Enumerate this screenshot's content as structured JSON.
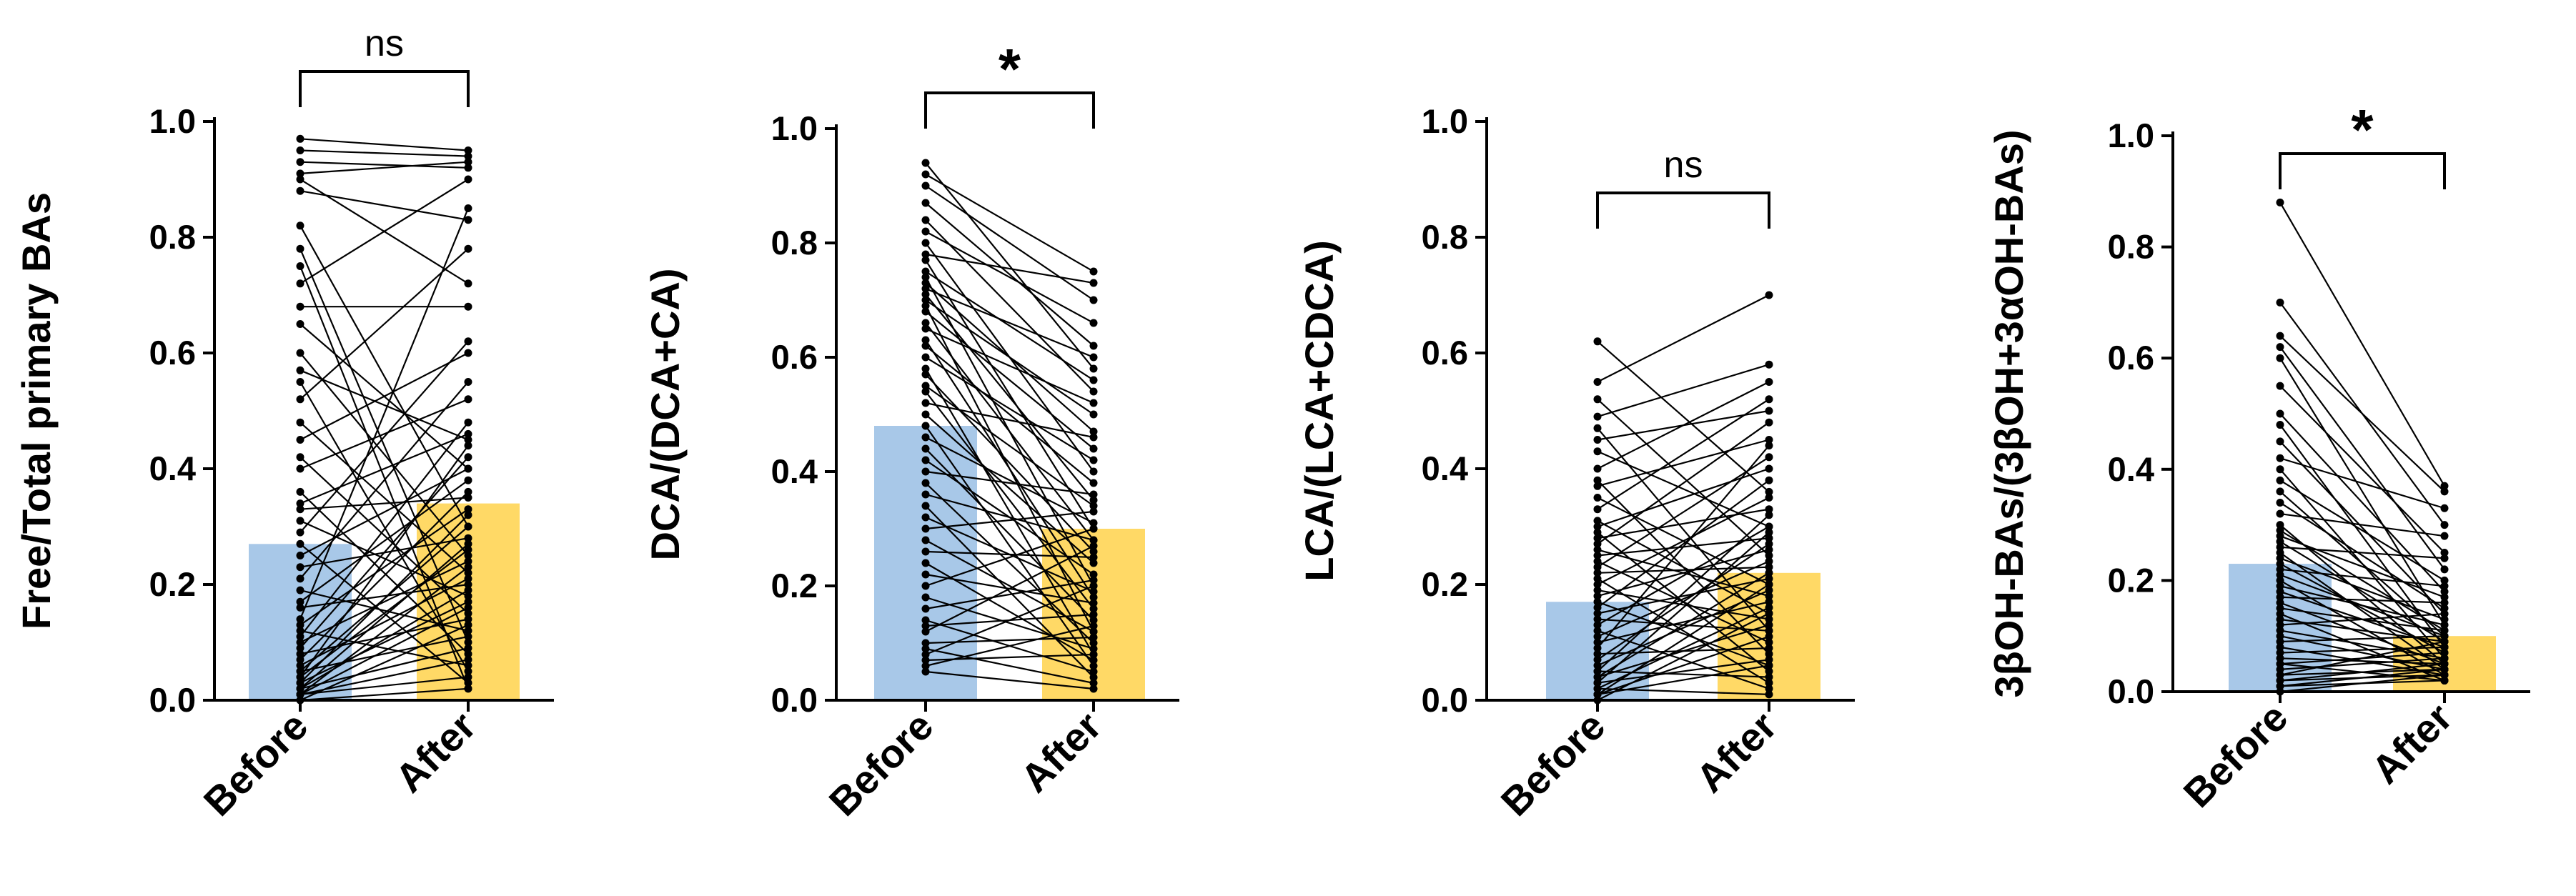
{
  "chart_data": [
    {
      "type": "bar",
      "subtype": "before-after paired dot plot",
      "ylabel": "Free/Total primary BAs",
      "categories": [
        "Before",
        "After"
      ],
      "bar_values": [
        0.27,
        0.34
      ],
      "bar_colors": [
        "#a8c8e8",
        "#ffd966"
      ],
      "ylim": [
        0,
        1.0
      ],
      "yticks": [
        "0.0",
        "0.2",
        "0.4",
        "0.6",
        "0.8",
        "1.0"
      ],
      "significance": "ns",
      "pairs": [
        [
          0.97,
          0.95
        ],
        [
          0.95,
          0.94
        ],
        [
          0.93,
          0.92
        ],
        [
          0.91,
          0.93
        ],
        [
          0.9,
          0.72
        ],
        [
          0.88,
          0.83
        ],
        [
          0.82,
          0.3
        ],
        [
          0.78,
          0.1
        ],
        [
          0.75,
          0.02
        ],
        [
          0.72,
          0.9
        ],
        [
          0.68,
          0.68
        ],
        [
          0.65,
          0.4
        ],
        [
          0.6,
          0.25
        ],
        [
          0.57,
          0.45
        ],
        [
          0.55,
          0.05
        ],
        [
          0.52,
          0.78
        ],
        [
          0.48,
          0.22
        ],
        [
          0.45,
          0.6
        ],
        [
          0.42,
          0.15
        ],
        [
          0.4,
          0.52
        ],
        [
          0.36,
          0.08
        ],
        [
          0.34,
          0.46
        ],
        [
          0.33,
          0.35
        ],
        [
          0.31,
          0.18
        ],
        [
          0.29,
          0.62
        ],
        [
          0.27,
          0.03
        ],
        [
          0.25,
          0.4
        ],
        [
          0.23,
          0.28
        ],
        [
          0.21,
          0.55
        ],
        [
          0.19,
          0.12
        ],
        [
          0.17,
          0.38
        ],
        [
          0.16,
          0.2
        ],
        [
          0.14,
          0.85
        ],
        [
          0.13,
          0.33
        ],
        [
          0.12,
          0.06
        ],
        [
          0.11,
          0.48
        ],
        [
          0.1,
          0.24
        ],
        [
          0.09,
          0.42
        ],
        [
          0.08,
          0.14
        ],
        [
          0.07,
          0.36
        ],
        [
          0.06,
          0.21
        ],
        [
          0.05,
          0.3
        ],
        [
          0.05,
          0.11
        ],
        [
          0.04,
          0.26
        ],
        [
          0.04,
          0.44
        ],
        [
          0.03,
          0.17
        ],
        [
          0.03,
          0.32
        ],
        [
          0.02,
          0.09
        ],
        [
          0.02,
          0.27
        ],
        [
          0.02,
          0.19
        ],
        [
          0.01,
          0.07
        ],
        [
          0.01,
          0.16
        ],
        [
          0.01,
          0.04
        ],
        [
          0.01,
          0.23
        ],
        [
          0.0,
          0.13
        ],
        [
          0.0,
          0.02
        ]
      ]
    },
    {
      "type": "bar",
      "subtype": "before-after paired dot plot",
      "ylabel": "DCA/(DCA+CA)",
      "categories": [
        "Before",
        "After"
      ],
      "bar_values": [
        0.48,
        0.3
      ],
      "bar_colors": [
        "#a8c8e8",
        "#ffd966"
      ],
      "ylim": [
        0,
        1.0
      ],
      "yticks": [
        "0.0",
        "0.2",
        "0.4",
        "0.6",
        "0.8",
        "1.0"
      ],
      "significance": "*",
      "pairs": [
        [
          0.94,
          0.58
        ],
        [
          0.92,
          0.75
        ],
        [
          0.9,
          0.7
        ],
        [
          0.87,
          0.62
        ],
        [
          0.84,
          0.54
        ],
        [
          0.82,
          0.66
        ],
        [
          0.8,
          0.4
        ],
        [
          0.78,
          0.73
        ],
        [
          0.77,
          0.3
        ],
        [
          0.75,
          0.56
        ],
        [
          0.74,
          0.2
        ],
        [
          0.73,
          0.47
        ],
        [
          0.72,
          0.6
        ],
        [
          0.71,
          0.35
        ],
        [
          0.7,
          0.5
        ],
        [
          0.69,
          0.12
        ],
        [
          0.68,
          0.44
        ],
        [
          0.66,
          0.28
        ],
        [
          0.65,
          0.52
        ],
        [
          0.63,
          0.18
        ],
        [
          0.62,
          0.38
        ],
        [
          0.6,
          0.42
        ],
        [
          0.58,
          0.08
        ],
        [
          0.57,
          0.26
        ],
        [
          0.55,
          0.34
        ],
        [
          0.54,
          0.16
        ],
        [
          0.52,
          0.46
        ],
        [
          0.5,
          0.24
        ],
        [
          0.48,
          0.06
        ],
        [
          0.46,
          0.31
        ],
        [
          0.44,
          0.14
        ],
        [
          0.42,
          0.22
        ],
        [
          0.4,
          0.36
        ],
        [
          0.38,
          0.1
        ],
        [
          0.36,
          0.28
        ],
        [
          0.34,
          0.04
        ],
        [
          0.32,
          0.19
        ],
        [
          0.3,
          0.33
        ],
        [
          0.28,
          0.12
        ],
        [
          0.26,
          0.25
        ],
        [
          0.24,
          0.07
        ],
        [
          0.22,
          0.17
        ],
        [
          0.2,
          0.3
        ],
        [
          0.18,
          0.09
        ],
        [
          0.16,
          0.21
        ],
        [
          0.14,
          0.05
        ],
        [
          0.13,
          0.15
        ],
        [
          0.12,
          0.27
        ],
        [
          0.1,
          0.11
        ],
        [
          0.09,
          0.03
        ],
        [
          0.08,
          0.2
        ],
        [
          0.07,
          0.08
        ],
        [
          0.06,
          0.13
        ],
        [
          0.05,
          0.02
        ]
      ]
    },
    {
      "type": "bar",
      "subtype": "before-after paired dot plot",
      "ylabel": "LCA/(LCA+CDCA)",
      "categories": [
        "Before",
        "After"
      ],
      "bar_values": [
        0.17,
        0.22
      ],
      "bar_colors": [
        "#a8c8e8",
        "#ffd966"
      ],
      "ylim": [
        0,
        1.0
      ],
      "yticks": [
        "0.0",
        "0.2",
        "0.4",
        "0.6",
        "0.8",
        "1.0"
      ],
      "significance": "ns",
      "pairs": [
        [
          0.62,
          0.36
        ],
        [
          0.55,
          0.7
        ],
        [
          0.52,
          0.25
        ],
        [
          0.49,
          0.58
        ],
        [
          0.47,
          0.12
        ],
        [
          0.45,
          0.5
        ],
        [
          0.43,
          0.3
        ],
        [
          0.4,
          0.55
        ],
        [
          0.38,
          0.08
        ],
        [
          0.37,
          0.45
        ],
        [
          0.35,
          0.2
        ],
        [
          0.33,
          0.52
        ],
        [
          0.31,
          0.15
        ],
        [
          0.3,
          0.4
        ],
        [
          0.29,
          0.05
        ],
        [
          0.28,
          0.33
        ],
        [
          0.27,
          0.48
        ],
        [
          0.26,
          0.18
        ],
        [
          0.25,
          0.28
        ],
        [
          0.24,
          0.1
        ],
        [
          0.23,
          0.42
        ],
        [
          0.22,
          0.23
        ],
        [
          0.21,
          0.03
        ],
        [
          0.2,
          0.35
        ],
        [
          0.19,
          0.14
        ],
        [
          0.18,
          0.26
        ],
        [
          0.17,
          0.06
        ],
        [
          0.16,
          0.38
        ],
        [
          0.15,
          0.21
        ],
        [
          0.14,
          0.12
        ],
        [
          0.13,
          0.3
        ],
        [
          0.12,
          0.02
        ],
        [
          0.11,
          0.24
        ],
        [
          0.1,
          0.17
        ],
        [
          0.09,
          0.44
        ],
        [
          0.08,
          0.09
        ],
        [
          0.07,
          0.27
        ],
        [
          0.06,
          0.19
        ],
        [
          0.05,
          0.04
        ],
        [
          0.05,
          0.32
        ],
        [
          0.04,
          0.13
        ],
        [
          0.04,
          0.22
        ],
        [
          0.03,
          0.07
        ],
        [
          0.03,
          0.29
        ],
        [
          0.02,
          0.16
        ],
        [
          0.02,
          0.01
        ],
        [
          0.01,
          0.2
        ],
        [
          0.01,
          0.11
        ],
        [
          0.01,
          0.06
        ],
        [
          0.0,
          0.15
        ]
      ]
    },
    {
      "type": "bar",
      "subtype": "before-after paired dot plot",
      "ylabel": "3βOH-BAs/(3βOH+3αOH-BAs)",
      "categories": [
        "Before",
        "After"
      ],
      "bar_values": [
        0.23,
        0.1
      ],
      "bar_colors": [
        "#a8c8e8",
        "#ffd966"
      ],
      "ylim": [
        0,
        1.0
      ],
      "yticks": [
        "0.0",
        "0.2",
        "0.4",
        "0.6",
        "0.8",
        "1.0"
      ],
      "significance": "*",
      "pairs": [
        [
          0.88,
          0.37
        ],
        [
          0.7,
          0.3
        ],
        [
          0.64,
          0.36
        ],
        [
          0.62,
          0.22
        ],
        [
          0.6,
          0.12
        ],
        [
          0.55,
          0.25
        ],
        [
          0.5,
          0.18
        ],
        [
          0.48,
          0.08
        ],
        [
          0.45,
          0.14
        ],
        [
          0.42,
          0.33
        ],
        [
          0.4,
          0.06
        ],
        [
          0.38,
          0.2
        ],
        [
          0.36,
          0.1
        ],
        [
          0.34,
          0.15
        ],
        [
          0.32,
          0.28
        ],
        [
          0.3,
          0.05
        ],
        [
          0.29,
          0.11
        ],
        [
          0.28,
          0.17
        ],
        [
          0.27,
          0.09
        ],
        [
          0.26,
          0.24
        ],
        [
          0.25,
          0.04
        ],
        [
          0.24,
          0.13
        ],
        [
          0.23,
          0.07
        ],
        [
          0.22,
          0.19
        ],
        [
          0.21,
          0.1
        ],
        [
          0.2,
          0.03
        ],
        [
          0.19,
          0.12
        ],
        [
          0.18,
          0.08
        ],
        [
          0.17,
          0.16
        ],
        [
          0.16,
          0.05
        ],
        [
          0.15,
          0.11
        ],
        [
          0.14,
          0.02
        ],
        [
          0.13,
          0.09
        ],
        [
          0.12,
          0.14
        ],
        [
          0.11,
          0.06
        ],
        [
          0.1,
          0.04
        ],
        [
          0.09,
          0.1
        ],
        [
          0.08,
          0.03
        ],
        [
          0.07,
          0.08
        ],
        [
          0.06,
          0.05
        ],
        [
          0.05,
          0.07
        ],
        [
          0.05,
          0.02
        ],
        [
          0.04,
          0.06
        ],
        [
          0.03,
          0.04
        ],
        [
          0.03,
          0.09
        ],
        [
          0.02,
          0.03
        ],
        [
          0.02,
          0.05
        ],
        [
          0.01,
          0.02
        ],
        [
          0.01,
          0.04
        ],
        [
          0.0,
          0.03
        ]
      ]
    }
  ]
}
